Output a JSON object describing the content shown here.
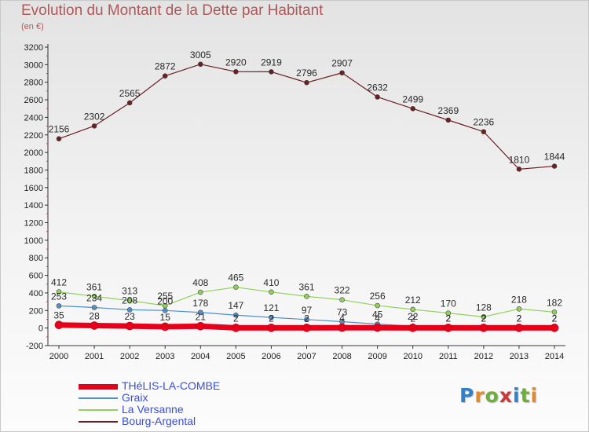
{
  "title": "Evolution du Montant de la Dette par Habitant",
  "subtitle": "(en €)",
  "logo": {
    "text": "Proxiti",
    "letter_colors": [
      "#2f82c8",
      "#e2892c",
      "#6cae3a",
      "#c53a3a",
      "#2f82c8",
      "#6cae3a",
      "#e2892c"
    ]
  },
  "chart_data": {
    "type": "line",
    "title": "Evolution du Montant de la Dette par Habitant",
    "subtitle": "(en €)",
    "xlabel": "",
    "ylabel": "",
    "x": [
      "2000",
      "2001",
      "2002",
      "2003",
      "2004",
      "2005",
      "2006",
      "2007",
      "2008",
      "2009",
      "2010",
      "2011",
      "2012",
      "2013",
      "2014"
    ],
    "ylim": [
      -200,
      3200
    ],
    "yticks": [
      -200,
      0,
      200,
      400,
      600,
      800,
      1000,
      1200,
      1400,
      1600,
      1800,
      2000,
      2200,
      2400,
      2600,
      2800,
      3000,
      3200
    ],
    "grid": false,
    "legend_position": "bottom-left",
    "series": [
      {
        "name": "THéLIS-LA-COMBE",
        "color": "#e8001a",
        "values": [
          35,
          28,
          23,
          15,
          21,
          2,
          2,
          2,
          4,
          4,
          2,
          2,
          2,
          2,
          2
        ]
      },
      {
        "name": "Graix",
        "color": "#4e8fcc",
        "values": [
          253,
          234,
          208,
          200,
          178,
          147,
          121,
          97,
          73,
          45,
          22,
          2,
          2,
          2,
          2
        ]
      },
      {
        "name": "La Versanne",
        "color": "#8fd15a",
        "values": [
          412,
          361,
          313,
          255,
          408,
          465,
          410,
          361,
          322,
          256,
          212,
          170,
          128,
          218,
          182
        ]
      },
      {
        "name": "Bourg-Argental",
        "color": "#6b1f24",
        "values": [
          2156,
          2302,
          2565,
          2872,
          3005,
          2920,
          2919,
          2796,
          2907,
          2632,
          2499,
          2369,
          2236,
          1810,
          1844
        ]
      }
    ]
  }
}
